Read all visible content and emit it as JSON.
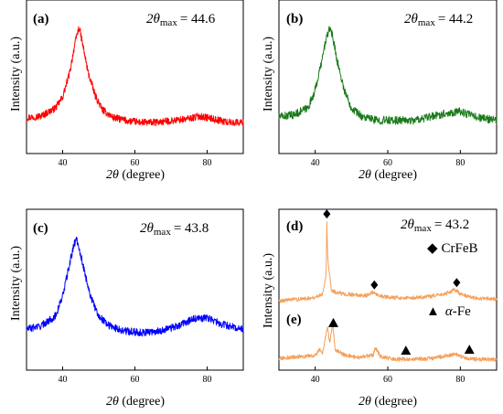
{
  "figure": {
    "panels": [
      {
        "letter": "(a)",
        "two_theta_label": "2θ",
        "max_subscript": "max",
        "max_value_text": "= 44.6",
        "ylabel": "Intensity (a.u.)",
        "xlabel_prefix": "2θ",
        "xlabel_suffix": " (degree)"
      },
      {
        "letter": "(b)",
        "two_theta_label": "2θ",
        "max_subscript": "max",
        "max_value_text": "= 44.2",
        "ylabel": "Intensity (a.u.)",
        "xlabel_prefix": "2θ",
        "xlabel_suffix": " (degree)"
      },
      {
        "letter": "(c)",
        "two_theta_label": "2θ",
        "max_subscript": "max",
        "max_value_text": "= 43.8",
        "ylabel": "Intensity (a.u.)",
        "xlabel_prefix": "2θ",
        "xlabel_suffix": " (degree)"
      },
      {
        "letter_d": "(d)",
        "letter_e": "(e)",
        "two_theta_label": "2θ",
        "max_subscript": "max",
        "max_value_text": "= 43.2",
        "legend_diamond_symbol": "◆",
        "legend_diamond_label": "CrFeB",
        "legend_triangle_symbol": "▲",
        "legend_triangle_label_prefix": "α",
        "legend_triangle_label_suffix": "-Fe",
        "ylabel": "Intensity (a.u.)",
        "xlabel_prefix": "2θ",
        "xlabel_suffix": " (degree)"
      }
    ]
  },
  "chart_data": [
    {
      "type": "line",
      "panel": "(a)",
      "xlabel": "2θ (degree)",
      "ylabel": "Intensity (a.u.)",
      "xlim": [
        30,
        90
      ],
      "xticks": [
        40,
        60,
        80
      ],
      "color": "#ff0000",
      "series": [
        {
          "name": "",
          "x": [
            30,
            34,
            38,
            40,
            42,
            43,
            44,
            44.6,
            45.5,
            47,
            49,
            51,
            54,
            58,
            62,
            66,
            70,
            74,
            78,
            82,
            86,
            90
          ],
          "y": [
            0.13,
            0.14,
            0.19,
            0.26,
            0.42,
            0.55,
            0.66,
            0.7,
            0.6,
            0.42,
            0.27,
            0.18,
            0.13,
            0.11,
            0.1,
            0.1,
            0.11,
            0.12,
            0.14,
            0.12,
            0.1,
            0.1
          ]
        }
      ]
    },
    {
      "type": "line",
      "panel": "(b)",
      "xlabel": "2θ (degree)",
      "ylabel": "Intensity (a.u.)",
      "xlim": [
        30,
        90
      ],
      "xticks": [
        40,
        60,
        80
      ],
      "color": "#1a7a1a",
      "series": [
        {
          "name": "",
          "x": [
            30,
            34,
            38,
            40,
            42,
            43,
            44.2,
            45,
            46,
            48,
            50,
            53,
            57,
            62,
            67,
            72,
            76,
            80,
            84,
            90
          ],
          "y": [
            0.12,
            0.13,
            0.17,
            0.27,
            0.45,
            0.56,
            0.62,
            0.55,
            0.44,
            0.27,
            0.17,
            0.12,
            0.1,
            0.1,
            0.1,
            0.12,
            0.14,
            0.15,
            0.12,
            0.1
          ]
        }
      ]
    },
    {
      "type": "line",
      "panel": "(c)",
      "xlabel": "2θ (degree)",
      "ylabel": "Intensity (a.u.)",
      "xlim": [
        30,
        90
      ],
      "xticks": [
        40,
        60,
        80
      ],
      "color": "#0000ff",
      "series": [
        {
          "name": "",
          "x": [
            30,
            34,
            38,
            40,
            42,
            43,
            43.8,
            44.6,
            46,
            48,
            50,
            53,
            57,
            62,
            67,
            72,
            76,
            80,
            84,
            90
          ],
          "y": [
            0.15,
            0.17,
            0.23,
            0.35,
            0.55,
            0.65,
            0.7,
            0.64,
            0.5,
            0.33,
            0.23,
            0.17,
            0.14,
            0.13,
            0.14,
            0.17,
            0.21,
            0.22,
            0.18,
            0.15
          ]
        }
      ]
    },
    {
      "type": "line",
      "panel": "(d)/(e)",
      "xlabel": "2θ (degree)",
      "ylabel": "Intensity (a.u.)",
      "xlim": [
        30,
        90
      ],
      "xticks": [
        40,
        60,
        80
      ],
      "color": "#f5a05a",
      "legend": [
        {
          "symbol": "diamond",
          "label": "CrFeB"
        },
        {
          "symbol": "triangle",
          "label": "α-Fe"
        }
      ],
      "series": [
        {
          "name": "(d)",
          "offset": 0.72,
          "x": [
            30,
            36,
            40,
            42,
            43,
            43.2,
            43.5,
            44.5,
            46,
            50,
            54,
            56,
            57,
            60,
            66,
            72,
            76,
            78.5,
            80,
            84,
            90
          ],
          "y": [
            0.0,
            0.02,
            0.04,
            0.08,
            0.3,
            0.9,
            0.45,
            0.12,
            0.09,
            0.07,
            0.06,
            0.1,
            0.06,
            0.04,
            0.03,
            0.05,
            0.08,
            0.13,
            0.08,
            0.03,
            0.02
          ],
          "markers": [
            {
              "type": "diamond",
              "x": 43.2
            },
            {
              "type": "diamond",
              "x": 56.3
            },
            {
              "type": "diamond",
              "x": 79.0
            }
          ]
        },
        {
          "name": "(e)",
          "offset": 0.0,
          "x": [
            30,
            36,
            40,
            41.2,
            42,
            43.4,
            44,
            44.8,
            45.5,
            48,
            52,
            56,
            56.5,
            58,
            62,
            66,
            72,
            78.8,
            80,
            84,
            90
          ],
          "y": [
            0.06,
            0.08,
            0.1,
            0.16,
            0.12,
            0.42,
            0.24,
            0.45,
            0.16,
            0.1,
            0.07,
            0.1,
            0.19,
            0.08,
            0.05,
            0.05,
            0.06,
            0.11,
            0.08,
            0.05,
            0.05
          ],
          "markers": [
            {
              "type": "triangle",
              "x": 45.0
            },
            {
              "type": "triangle",
              "x": 65.0
            },
            {
              "type": "triangle",
              "x": 82.5
            }
          ]
        }
      ]
    }
  ]
}
